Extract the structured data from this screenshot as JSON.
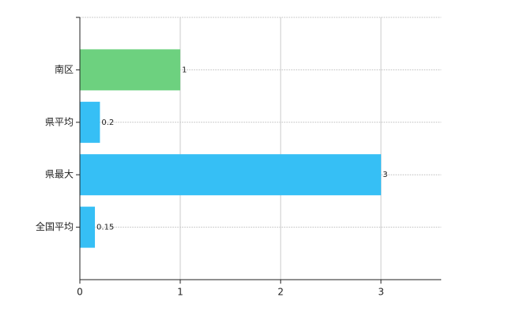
{
  "chart_data": {
    "type": "bar",
    "orientation": "horizontal",
    "categories": [
      "南区",
      "県平均",
      "県最大",
      "全国平均"
    ],
    "values": [
      1,
      0.2,
      3,
      0.15
    ],
    "colors": [
      "#6dd17f",
      "#36bff5",
      "#36bff5",
      "#36bff5"
    ],
    "xlim": [
      0,
      3.6
    ],
    "xticks": [
      0,
      1,
      2,
      3
    ],
    "grid": true
  }
}
